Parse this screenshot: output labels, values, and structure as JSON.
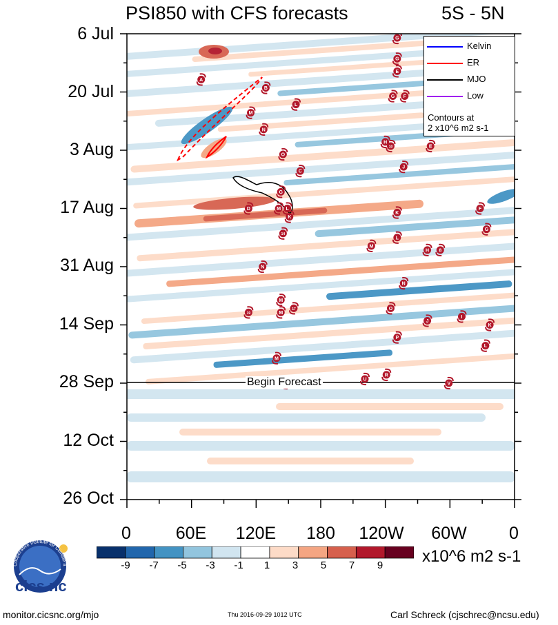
{
  "header": {
    "title": "PSI850 with CFS forecasts",
    "region": "5S - 5N"
  },
  "chart_data": {
    "type": "heatmap",
    "title": "PSI850 with CFS forecasts",
    "subtitle": "5S - 5N",
    "x_ticks": [
      "0",
      "60E",
      "120E",
      "180",
      "120W",
      "60W",
      "0"
    ],
    "x_range_deg_east": [
      0,
      360
    ],
    "y_ticks": [
      "6 Jul",
      "20 Jul",
      "3 Aug",
      "17 Aug",
      "31 Aug",
      "14 Sep",
      "28 Sep",
      "12 Oct",
      "26 Oct"
    ],
    "y_range": [
      "6 Jul",
      "26 Oct"
    ],
    "forecast_label": "Begin Forecast",
    "forecast_start": "28 Sep",
    "colorbar": {
      "levels": [
        "-9",
        "-7",
        "-5",
        "-3",
        "-1",
        "1",
        "3",
        "5",
        "7",
        "9"
      ],
      "colors": [
        "#08306b",
        "#2166ac",
        "#4393c3",
        "#92c5de",
        "#d1e5f0",
        "#ffffff",
        "#fddbc7",
        "#f4a582",
        "#d6604d",
        "#b2182b",
        "#67001f"
      ],
      "units": "x10^6 m2 s-1"
    },
    "legend": [
      {
        "label": "Kelvin",
        "color": "#0000ff",
        "style": "solid"
      },
      {
        "label": "ER",
        "color": "#ff0000",
        "style": "solid"
      },
      {
        "label": "MJO",
        "color": "#000000",
        "style": "solid"
      },
      {
        "label": "Low",
        "color": "#a020f0",
        "style": "solid"
      }
    ],
    "contour_note": [
      "Contours at",
      "2 x10^6 m2 s-1"
    ],
    "storms": [
      {
        "label": "G",
        "lon": 251,
        "date": "7 Jul"
      },
      {
        "label": "G",
        "lon": 251,
        "date": "12 Jul"
      },
      {
        "label": "A",
        "lon": 69,
        "date": "17 Jul"
      },
      {
        "label": "B",
        "lon": 129,
        "date": "19 Jul"
      },
      {
        "label": "E",
        "lon": 251,
        "date": "15 Jul"
      },
      {
        "label": "G",
        "lon": 247,
        "date": "21 Jul"
      },
      {
        "label": "F",
        "lon": 258,
        "date": "21 Jul"
      },
      {
        "label": "L",
        "lon": 157,
        "date": "23 Jul"
      },
      {
        "label": "M",
        "lon": 115,
        "date": "25 Jul"
      },
      {
        "label": "N",
        "lon": 127,
        "date": "29 Jul"
      },
      {
        "label": "H",
        "lon": 240,
        "date": "1 Aug"
      },
      {
        "label": "10",
        "lon": 245,
        "date": "2 Aug"
      },
      {
        "label": "E",
        "lon": 282,
        "date": "2 Aug"
      },
      {
        "label": "O",
        "lon": 145,
        "date": "4 Aug"
      },
      {
        "label": "J",
        "lon": 257,
        "date": "7 Aug"
      },
      {
        "label": "C",
        "lon": 161,
        "date": "8 Aug"
      },
      {
        "label": "G",
        "lon": 143,
        "date": "13 Aug"
      },
      {
        "label": "F",
        "lon": 328,
        "date": "17 Aug"
      },
      {
        "label": "D",
        "lon": 113,
        "date": "17 Aug"
      },
      {
        "label": "M",
        "lon": 141,
        "date": "17 Aug"
      },
      {
        "label": "L",
        "lon": 149,
        "date": "17 Aug"
      },
      {
        "label": "K",
        "lon": 151,
        "date": "19 Aug"
      },
      {
        "label": "K",
        "lon": 251,
        "date": "18 Aug"
      },
      {
        "label": "G",
        "lon": 334,
        "date": "22 Aug"
      },
      {
        "label": "14",
        "lon": 145,
        "date": "23 Aug"
      },
      {
        "label": "L",
        "lon": 251,
        "date": "24 Aug"
      },
      {
        "label": "M",
        "lon": 227,
        "date": "26 Aug"
      },
      {
        "label": "H",
        "lon": 279,
        "date": "27 Aug"
      },
      {
        "label": "8",
        "lon": 291,
        "date": "27 Aug"
      },
      {
        "label": "N",
        "lon": 126,
        "date": "31 Aug"
      },
      {
        "label": "N",
        "lon": 257,
        "date": "4 Sep"
      },
      {
        "label": "M",
        "lon": 143,
        "date": "8 Sep"
      },
      {
        "label": "O",
        "lon": 245,
        "date": "10 Sep"
      },
      {
        "label": "19",
        "lon": 113,
        "date": "11 Sep"
      },
      {
        "label": "M",
        "lon": 143,
        "date": "11 Sep"
      },
      {
        "label": "17",
        "lon": 155,
        "date": "10 Sep"
      },
      {
        "label": "I",
        "lon": 311,
        "date": "12 Sep"
      },
      {
        "label": "J",
        "lon": 279,
        "date": "13 Sep"
      },
      {
        "label": "K",
        "lon": 337,
        "date": "14 Sep"
      },
      {
        "label": "P",
        "lon": 251,
        "date": "17 Sep"
      },
      {
        "label": "L",
        "lon": 333,
        "date": "19 Sep"
      },
      {
        "label": "M",
        "lon": 139,
        "date": "22 Sep"
      },
      {
        "label": "U",
        "lon": 221,
        "date": "27 Sep"
      },
      {
        "label": "R",
        "lon": 241,
        "date": "26 Sep"
      },
      {
        "label": "W",
        "lon": 148,
        "date": "28 Sep"
      },
      {
        "label": "V",
        "lon": 299,
        "date": "28 Sep"
      }
    ]
  },
  "footer": {
    "left": "monitor.cicsnc.org/mjo",
    "center": "Thu 2016-09-29 1012 UTC",
    "right": "Carl Schreck (cjschrec@ncsu.edu)",
    "logo_text": "cics.nc",
    "logo_ring": "Cooperative Institute for Climate and Satellites"
  }
}
